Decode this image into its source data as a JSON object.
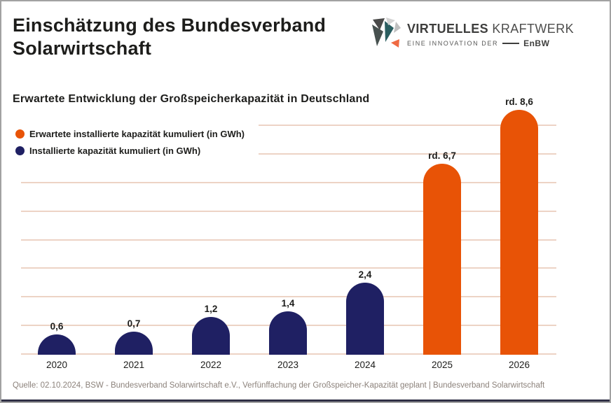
{
  "header": {
    "title_line1": "Einschätzung des Bundesverband",
    "title_line2": "Solarwirtschaft",
    "logo": {
      "text_bold": "VIRTUELLES",
      "text_regular": "KRAFTWERK",
      "tagline": "EINE INNOVATION DER",
      "brand": "EnBW"
    }
  },
  "chart": {
    "subtitle": "Erwartete Entwicklung der Großspeicherkapazität in Deutschland",
    "legend": [
      {
        "label": "Erwartete installierte kapazität kumuliert (in GWh)",
        "color": "#E85306"
      },
      {
        "label": "Installierte kapazität kumuliert (in GWh)",
        "color": "#1F2063"
      }
    ]
  },
  "chart_data": {
    "type": "bar",
    "title": "Erwartete Entwicklung der Großspeicherkapazität in Deutschland",
    "unit": "GWh",
    "categories": [
      "2020",
      "2021",
      "2022",
      "2023",
      "2024",
      "2025",
      "2026"
    ],
    "values": [
      0.6,
      0.7,
      1.2,
      1.4,
      2.4,
      6.7,
      8.6
    ],
    "value_labels": [
      "0,6",
      "0,7",
      "1,2",
      "1,4",
      "2,4",
      "rd. 6,7",
      "rd. 8,6"
    ],
    "series": [
      {
        "name": "Installierte kapazität kumuliert (in GWh)",
        "color": "#1F2063",
        "categories": [
          "2020",
          "2021",
          "2022",
          "2023",
          "2024"
        ],
        "values": [
          0.6,
          0.7,
          1.2,
          1.4,
          2.4
        ]
      },
      {
        "name": "Erwartete installierte kapazität kumuliert (in GWh)",
        "color": "#E85306",
        "categories": [
          "2025",
          "2026"
        ],
        "values": [
          6.7,
          8.6
        ]
      }
    ],
    "bar_colors": [
      "#1F2063",
      "#1F2063",
      "#1F2063",
      "#1F2063",
      "#1F2063",
      "#E85306",
      "#E85306"
    ],
    "ylim": [
      0,
      9
    ],
    "gridline_step": 1,
    "grid": true,
    "legend_position": "top-left"
  },
  "footer": {
    "source": "Quelle: 02.10.2024, BSW - Bundesverband Solarwirtschaft e.V., Verfünffachung der Großspeicher-Kapazität geplant | Bundesverband Solarwirtschaft"
  },
  "colors": {
    "bar_navy": "#1F2063",
    "bar_orange": "#E85306",
    "gridline": "#EDD3C5",
    "text": "#1D1D1B",
    "source_text": "#8C827B",
    "logo_teal": "#2A5E60",
    "logo_orange": "#EF6A43"
  }
}
